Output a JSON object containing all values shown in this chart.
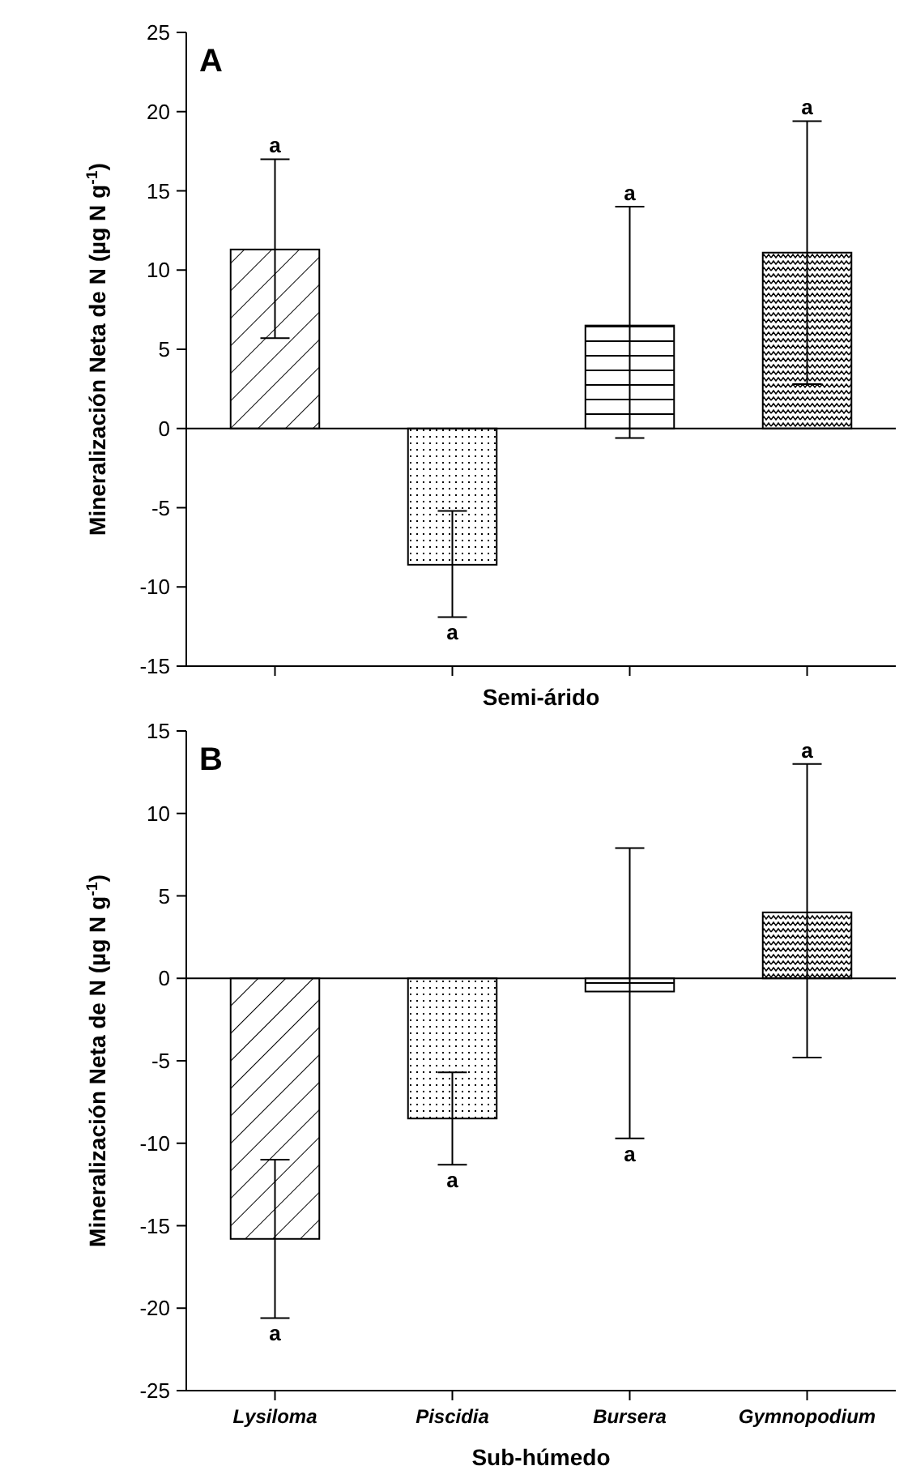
{
  "chart_data": [
    {
      "type": "bar",
      "title": "A",
      "xlabel": "Semi-árido",
      "ylabel": "Mineralización Neta de N (µg N g$^{-1}$)",
      "categories": [
        null,
        null,
        null,
        null
      ],
      "values": [
        11.3,
        -8.6,
        6.5,
        11.1
      ],
      "color": "#000000",
      "errors": [
        [
          5.7,
          17
        ],
        [
          -11.9,
          -5.2
        ],
        [
          -0.6,
          14
        ],
        [
          2.8,
          19.4
        ]
      ],
      "annotations": [
        {
          "text": "a",
          "y": 17
        },
        {
          "text": "a",
          "y": -11.9
        },
        {
          "text": "a",
          "y": 14
        },
        {
          "text": "a",
          "y": 19.4
        }
      ],
      "ylim": [
        -15,
        25
      ],
      "yticks": [
        -15,
        -10,
        -5,
        0,
        5,
        10,
        15,
        20,
        25
      ],
      "tick_labels": "y"
    },
    {
      "type": "bar",
      "title": "B",
      "xlabel": "Sub-húmedo",
      "ylabel": "Mineralización Neta de N (µg N g$^{-1}$)",
      "categories": [
        "Lysiloma",
        "Piscidia",
        "Bursera",
        "Gymnopodium"
      ],
      "values": [
        -15.8,
        -8.5,
        -0.8,
        4
      ],
      "color": "#000000",
      "errors": [
        [
          -20.6,
          -11
        ],
        [
          -11.3,
          -5.7
        ],
        [
          -9.7,
          7.9
        ],
        [
          -4.8,
          13
        ]
      ],
      "annotations": [
        {
          "text": "a",
          "x": "Lysiloma",
          "y": -20.6
        },
        {
          "text": "a",
          "x": "Piscidia",
          "y": -11.3
        },
        {
          "text": "a",
          "x": "Bursera",
          "y": -9.7
        },
        {
          "text": "a",
          "x": "Gymnopodium",
          "y": 13
        }
      ],
      "ylim": [
        -25,
        15
      ],
      "yticks": [
        -25,
        -20,
        -15,
        -10,
        -5,
        0,
        5,
        10,
        15
      ]
    }
  ]
}
